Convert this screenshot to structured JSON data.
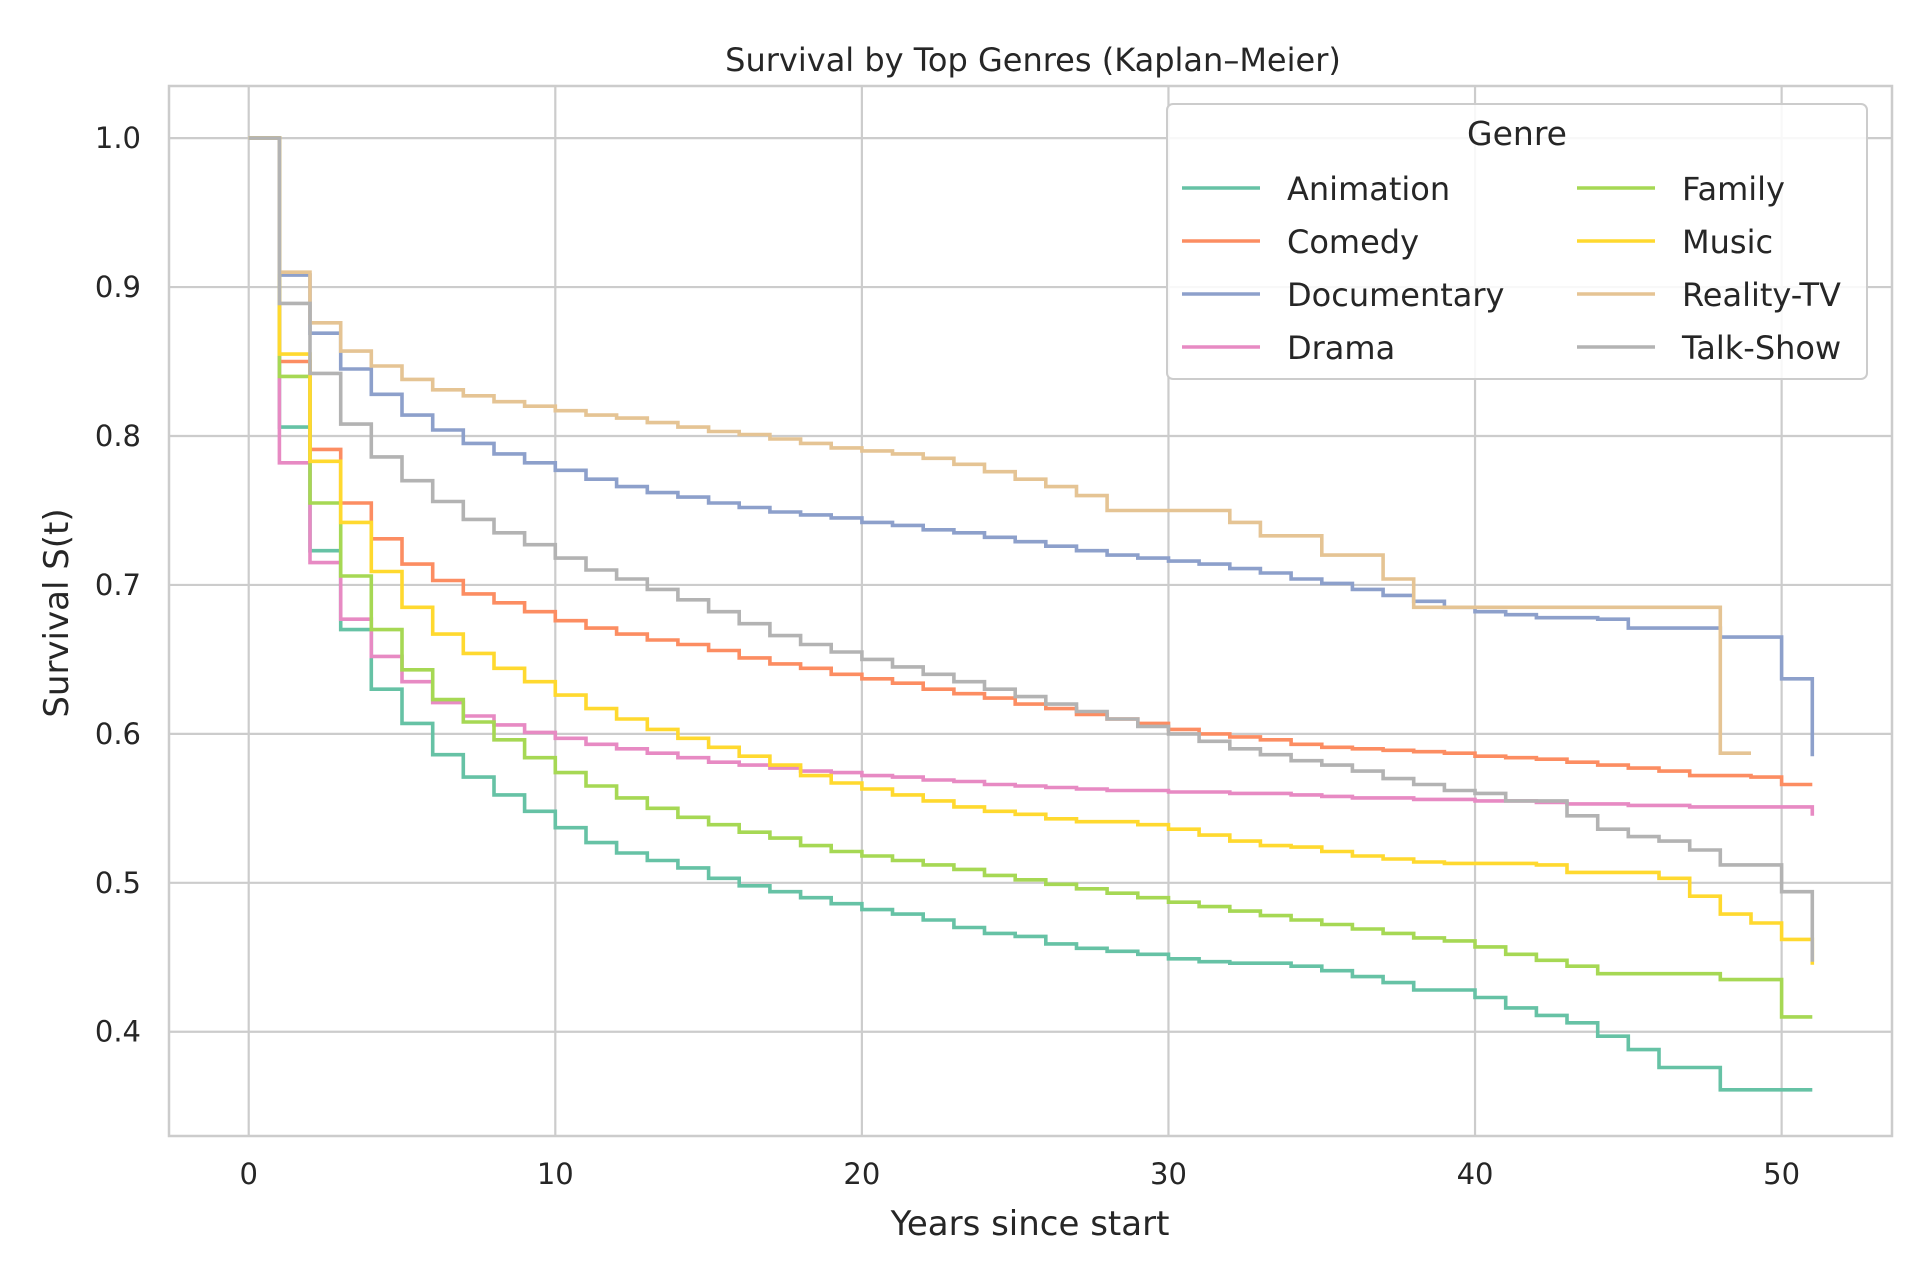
{
  "chart_data": {
    "type": "line",
    "step": true,
    "title": "Survival by Top Genres (Kaplan–Meier)",
    "xlabel": "Years since start",
    "ylabel": "Survival S(t)",
    "xlim": [
      -2.6,
      53.6
    ],
    "ylim": [
      0.33,
      1.035
    ],
    "xticks": [
      0,
      10,
      20,
      30,
      40,
      50
    ],
    "yticks": [
      0.4,
      0.5,
      0.6,
      0.7,
      0.8,
      0.9,
      1.0
    ],
    "xtick_labels": [
      "0",
      "10",
      "20",
      "30",
      "40",
      "50"
    ],
    "ytick_labels": [
      "0.4",
      "0.5",
      "0.6",
      "0.7",
      "0.8",
      "0.9",
      "1.0"
    ],
    "grid": true,
    "legend": {
      "title": "Genre",
      "placement": "top-right",
      "columns": 2
    },
    "series": [
      {
        "name": "Animation",
        "color": "#66c2a5",
        "x": [
          0,
          1,
          2,
          3,
          4,
          5,
          6,
          7,
          8,
          9,
          10,
          11,
          12,
          13,
          14,
          15,
          16,
          17,
          18,
          19,
          20,
          21,
          22,
          23,
          24,
          25,
          26,
          27,
          28,
          29,
          30,
          31,
          32,
          33,
          34,
          35,
          36,
          37,
          38,
          39,
          40,
          41,
          42,
          43,
          44,
          45,
          46,
          47,
          48,
          49,
          50,
          51
        ],
        "y": [
          1.0,
          0.806,
          0.723,
          0.67,
          0.63,
          0.607,
          0.586,
          0.571,
          0.559,
          0.548,
          0.537,
          0.527,
          0.52,
          0.515,
          0.51,
          0.503,
          0.498,
          0.494,
          0.49,
          0.486,
          0.482,
          0.479,
          0.475,
          0.47,
          0.466,
          0.464,
          0.459,
          0.456,
          0.454,
          0.452,
          0.449,
          0.447,
          0.446,
          0.446,
          0.444,
          0.441,
          0.437,
          0.433,
          0.428,
          0.428,
          0.423,
          0.416,
          0.411,
          0.406,
          0.397,
          0.388,
          0.376,
          0.376,
          0.361,
          0.361,
          0.361,
          0.361
        ]
      },
      {
        "name": "Comedy",
        "color": "#fc8d62",
        "x": [
          0,
          1,
          2,
          3,
          4,
          5,
          6,
          7,
          8,
          9,
          10,
          11,
          12,
          13,
          14,
          15,
          16,
          17,
          18,
          19,
          20,
          21,
          22,
          23,
          24,
          25,
          26,
          27,
          28,
          29,
          30,
          31,
          32,
          33,
          34,
          35,
          36,
          37,
          38,
          39,
          40,
          41,
          42,
          43,
          44,
          45,
          46,
          47,
          48,
          49,
          50,
          51
        ],
        "y": [
          1.0,
          0.85,
          0.791,
          0.755,
          0.731,
          0.714,
          0.703,
          0.694,
          0.688,
          0.682,
          0.676,
          0.671,
          0.667,
          0.663,
          0.66,
          0.656,
          0.651,
          0.647,
          0.644,
          0.64,
          0.637,
          0.634,
          0.63,
          0.627,
          0.624,
          0.62,
          0.617,
          0.613,
          0.61,
          0.607,
          0.603,
          0.6,
          0.598,
          0.596,
          0.593,
          0.591,
          0.59,
          0.589,
          0.588,
          0.587,
          0.585,
          0.584,
          0.583,
          0.581,
          0.579,
          0.577,
          0.575,
          0.572,
          0.572,
          0.571,
          0.566,
          0.566
        ]
      },
      {
        "name": "Documentary",
        "color": "#8da0cb",
        "x": [
          0,
          1,
          2,
          3,
          4,
          5,
          6,
          7,
          8,
          9,
          10,
          11,
          12,
          13,
          14,
          15,
          16,
          17,
          18,
          19,
          20,
          21,
          22,
          23,
          24,
          25,
          26,
          27,
          28,
          29,
          30,
          31,
          32,
          33,
          34,
          35,
          36,
          37,
          38,
          39,
          40,
          41,
          42,
          43,
          44,
          45,
          46,
          47,
          48,
          49,
          50,
          51
        ],
        "y": [
          1.0,
          0.908,
          0.869,
          0.845,
          0.828,
          0.814,
          0.804,
          0.795,
          0.788,
          0.782,
          0.777,
          0.771,
          0.766,
          0.762,
          0.759,
          0.755,
          0.752,
          0.749,
          0.747,
          0.745,
          0.742,
          0.74,
          0.737,
          0.735,
          0.732,
          0.729,
          0.726,
          0.723,
          0.72,
          0.718,
          0.716,
          0.714,
          0.711,
          0.708,
          0.704,
          0.701,
          0.697,
          0.693,
          0.689,
          0.685,
          0.682,
          0.68,
          0.678,
          0.678,
          0.677,
          0.671,
          0.671,
          0.671,
          0.665,
          0.665,
          0.637,
          0.585
        ]
      },
      {
        "name": "Drama",
        "color": "#e78ac3",
        "x": [
          0,
          1,
          2,
          3,
          4,
          5,
          6,
          7,
          8,
          9,
          10,
          11,
          12,
          13,
          14,
          15,
          16,
          17,
          18,
          19,
          20,
          21,
          22,
          23,
          24,
          25,
          26,
          27,
          28,
          29,
          30,
          31,
          32,
          33,
          34,
          35,
          36,
          37,
          38,
          39,
          40,
          41,
          42,
          43,
          44,
          45,
          46,
          47,
          48,
          49,
          50,
          51
        ],
        "y": [
          1.0,
          0.782,
          0.715,
          0.677,
          0.652,
          0.635,
          0.621,
          0.612,
          0.606,
          0.601,
          0.597,
          0.593,
          0.59,
          0.587,
          0.584,
          0.581,
          0.579,
          0.577,
          0.575,
          0.574,
          0.572,
          0.571,
          0.569,
          0.568,
          0.566,
          0.565,
          0.564,
          0.563,
          0.562,
          0.562,
          0.561,
          0.561,
          0.56,
          0.56,
          0.559,
          0.558,
          0.557,
          0.557,
          0.556,
          0.556,
          0.555,
          0.555,
          0.554,
          0.553,
          0.553,
          0.552,
          0.552,
          0.551,
          0.551,
          0.551,
          0.551,
          0.545
        ]
      },
      {
        "name": "Family",
        "color": "#a6d854",
        "x": [
          0,
          1,
          2,
          3,
          4,
          5,
          6,
          7,
          8,
          9,
          10,
          11,
          12,
          13,
          14,
          15,
          16,
          17,
          18,
          19,
          20,
          21,
          22,
          23,
          24,
          25,
          26,
          27,
          28,
          29,
          30,
          31,
          32,
          33,
          34,
          35,
          36,
          37,
          38,
          39,
          40,
          41,
          42,
          43,
          44,
          45,
          46,
          47,
          48,
          49,
          50,
          51
        ],
        "y": [
          1.0,
          0.84,
          0.755,
          0.706,
          0.67,
          0.643,
          0.623,
          0.608,
          0.596,
          0.584,
          0.574,
          0.565,
          0.557,
          0.55,
          0.544,
          0.539,
          0.534,
          0.53,
          0.525,
          0.521,
          0.518,
          0.515,
          0.512,
          0.509,
          0.505,
          0.502,
          0.499,
          0.496,
          0.493,
          0.49,
          0.487,
          0.484,
          0.481,
          0.478,
          0.475,
          0.472,
          0.469,
          0.466,
          0.463,
          0.461,
          0.457,
          0.452,
          0.448,
          0.444,
          0.439,
          0.439,
          0.439,
          0.439,
          0.435,
          0.435,
          0.41,
          0.41
        ]
      },
      {
        "name": "Music",
        "color": "#ffd92f",
        "x": [
          0,
          1,
          2,
          3,
          4,
          5,
          6,
          7,
          8,
          9,
          10,
          11,
          12,
          13,
          14,
          15,
          16,
          17,
          18,
          19,
          20,
          21,
          22,
          23,
          24,
          25,
          26,
          27,
          28,
          29,
          30,
          31,
          32,
          33,
          34,
          35,
          36,
          37,
          38,
          39,
          40,
          41,
          42,
          43,
          44,
          45,
          46,
          47,
          48,
          49,
          50,
          51
        ],
        "y": [
          1.0,
          0.855,
          0.783,
          0.742,
          0.709,
          0.685,
          0.667,
          0.654,
          0.644,
          0.635,
          0.626,
          0.617,
          0.61,
          0.603,
          0.597,
          0.591,
          0.585,
          0.579,
          0.572,
          0.567,
          0.563,
          0.559,
          0.555,
          0.551,
          0.548,
          0.546,
          0.543,
          0.541,
          0.541,
          0.539,
          0.536,
          0.532,
          0.528,
          0.525,
          0.524,
          0.521,
          0.518,
          0.516,
          0.514,
          0.513,
          0.513,
          0.513,
          0.512,
          0.507,
          0.507,
          0.507,
          0.503,
          0.491,
          0.479,
          0.473,
          0.462,
          0.445
        ]
      },
      {
        "name": "Reality-TV",
        "color": "#e5c494",
        "x": [
          0,
          1,
          2,
          3,
          4,
          5,
          6,
          7,
          8,
          9,
          10,
          11,
          12,
          13,
          14,
          15,
          16,
          17,
          18,
          19,
          20,
          21,
          22,
          23,
          24,
          25,
          26,
          27,
          28,
          29,
          30,
          31,
          32,
          33,
          34,
          35,
          36,
          37,
          38,
          39,
          40,
          41,
          42,
          43,
          44,
          45,
          46,
          47,
          48,
          49
        ],
        "y": [
          1.0,
          0.91,
          0.876,
          0.857,
          0.847,
          0.838,
          0.831,
          0.827,
          0.823,
          0.82,
          0.817,
          0.814,
          0.812,
          0.809,
          0.806,
          0.803,
          0.801,
          0.798,
          0.795,
          0.792,
          0.79,
          0.788,
          0.785,
          0.781,
          0.776,
          0.771,
          0.766,
          0.76,
          0.75,
          0.75,
          0.75,
          0.75,
          0.742,
          0.733,
          0.733,
          0.72,
          0.72,
          0.704,
          0.685,
          0.685,
          0.685,
          0.685,
          0.685,
          0.685,
          0.685,
          0.685,
          0.685,
          0.685,
          0.587,
          0.587
        ]
      },
      {
        "name": "Talk-Show",
        "color": "#b3b3b3",
        "x": [
          0,
          1,
          2,
          3,
          4,
          5,
          6,
          7,
          8,
          9,
          10,
          11,
          12,
          13,
          14,
          15,
          16,
          17,
          18,
          19,
          20,
          21,
          22,
          23,
          24,
          25,
          26,
          27,
          28,
          29,
          30,
          31,
          32,
          33,
          34,
          35,
          36,
          37,
          38,
          39,
          40,
          41,
          42,
          43,
          44,
          45,
          46,
          47,
          48,
          49,
          50,
          51
        ],
        "y": [
          1.0,
          0.889,
          0.842,
          0.808,
          0.786,
          0.77,
          0.756,
          0.744,
          0.735,
          0.727,
          0.718,
          0.71,
          0.704,
          0.697,
          0.69,
          0.682,
          0.674,
          0.666,
          0.66,
          0.655,
          0.65,
          0.645,
          0.64,
          0.635,
          0.63,
          0.625,
          0.62,
          0.615,
          0.61,
          0.605,
          0.6,
          0.595,
          0.59,
          0.586,
          0.582,
          0.579,
          0.575,
          0.57,
          0.566,
          0.562,
          0.56,
          0.555,
          0.555,
          0.545,
          0.536,
          0.531,
          0.528,
          0.522,
          0.512,
          0.512,
          0.494,
          0.447
        ]
      }
    ]
  }
}
